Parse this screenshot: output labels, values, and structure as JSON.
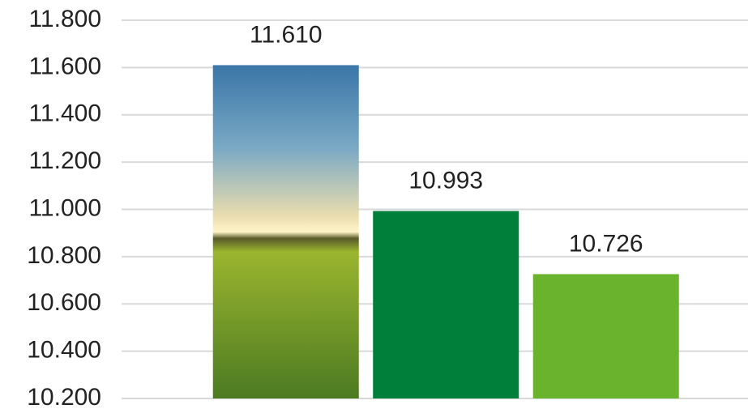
{
  "chart_data": {
    "type": "bar",
    "categories": [
      null,
      null,
      null
    ],
    "values": [
      11610,
      10993,
      10726
    ],
    "value_labels": [
      "11.610",
      "10.993",
      "10.726"
    ],
    "colors": [
      "#9ab52e",
      "#007f3a",
      "#6ab42d"
    ],
    "ylim": [
      10200,
      11800
    ],
    "yticks": [
      {
        "value": 10200,
        "label": "10.200"
      },
      {
        "value": 10400,
        "label": "10.400"
      },
      {
        "value": 10600,
        "label": "10.600"
      },
      {
        "value": 10800,
        "label": "10.800"
      },
      {
        "value": 11000,
        "label": "11.000"
      },
      {
        "value": 11200,
        "label": "11.200"
      },
      {
        "value": 11400,
        "label": "11.400"
      },
      {
        "value": 11600,
        "label": "11.600"
      },
      {
        "value": 11800,
        "label": "11.800"
      }
    ],
    "grid": true
  }
}
